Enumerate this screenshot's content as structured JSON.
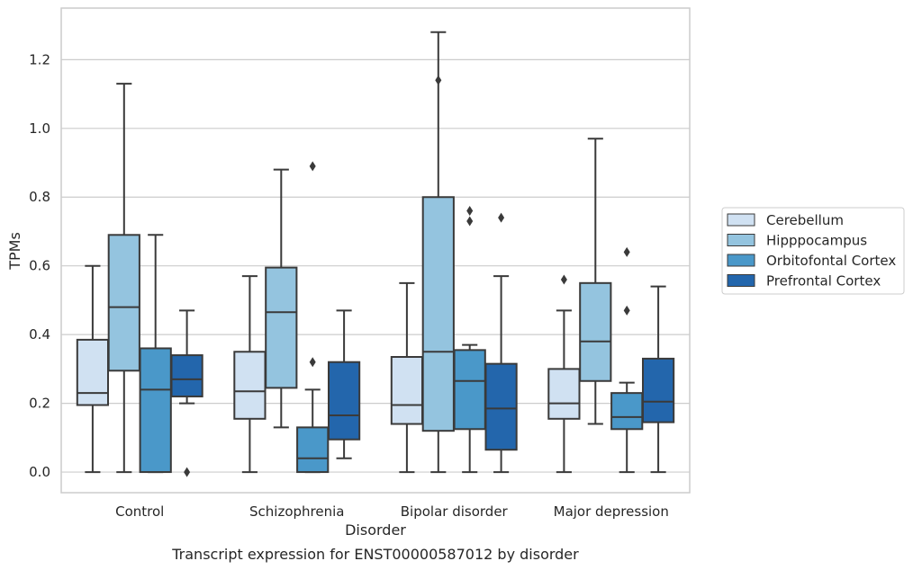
{
  "chart_data": {
    "type": "box",
    "title": "",
    "caption": "Transcript expression for ENST00000587012 by disorder",
    "xlabel": "Disorder",
    "ylabel": "TPMs",
    "ylim": [
      -0.06,
      1.35
    ],
    "yticks": [
      "0.0",
      "0.2",
      "0.4",
      "0.6",
      "0.8",
      "1.0",
      "1.2"
    ],
    "grid": true,
    "legend_position": "right",
    "categories": [
      "Control",
      "Schizophrenia",
      "Bipolar disorder",
      "Major depression"
    ],
    "series": [
      {
        "name": "Cerebellum",
        "color": "#d0e1f2",
        "boxes": [
          {
            "whislo": 0.0,
            "q1": 0.195,
            "med": 0.23,
            "q3": 0.385,
            "whishi": 0.6,
            "fliers": []
          },
          {
            "whislo": 0.0,
            "q1": 0.155,
            "med": 0.235,
            "q3": 0.35,
            "whishi": 0.57,
            "fliers": []
          },
          {
            "whislo": 0.0,
            "q1": 0.14,
            "med": 0.195,
            "q3": 0.335,
            "whishi": 0.55,
            "fliers": []
          },
          {
            "whislo": 0.0,
            "q1": 0.155,
            "med": 0.2,
            "q3": 0.3,
            "whishi": 0.47,
            "fliers": [
              0.56
            ]
          }
        ]
      },
      {
        "name": "Hipppocampus",
        "color": "#94c4df",
        "boxes": [
          {
            "whislo": 0.0,
            "q1": 0.295,
            "med": 0.48,
            "q3": 0.69,
            "whishi": 1.13,
            "fliers": []
          },
          {
            "whislo": 0.13,
            "q1": 0.245,
            "med": 0.465,
            "q3": 0.595,
            "whishi": 0.88,
            "fliers": []
          },
          {
            "whislo": 0.0,
            "q1": 0.12,
            "med": 0.35,
            "q3": 0.8,
            "whishi": 1.28,
            "fliers": [
              1.14
            ]
          },
          {
            "whislo": 0.14,
            "q1": 0.265,
            "med": 0.38,
            "q3": 0.55,
            "whishi": 0.97,
            "fliers": []
          }
        ]
      },
      {
        "name": "Orbitofontal Cortex",
        "color": "#4a98c9",
        "boxes": [
          {
            "whislo": 0.0,
            "q1": 0.0,
            "med": 0.24,
            "q3": 0.36,
            "whishi": 0.69,
            "fliers": []
          },
          {
            "whislo": 0.0,
            "q1": 0.0,
            "med": 0.04,
            "q3": 0.13,
            "whishi": 0.24,
            "fliers": [
              0.32,
              0.89
            ]
          },
          {
            "whislo": 0.0,
            "q1": 0.125,
            "med": 0.265,
            "q3": 0.355,
            "whishi": 0.37,
            "fliers": [
              0.73,
              0.76
            ]
          },
          {
            "whislo": 0.0,
            "q1": 0.125,
            "med": 0.16,
            "q3": 0.23,
            "whishi": 0.26,
            "fliers": [
              0.47,
              0.64
            ]
          }
        ]
      },
      {
        "name": "Prefrontal Cortex",
        "color": "#2366ac",
        "boxes": [
          {
            "whislo": 0.2,
            "q1": 0.22,
            "med": 0.27,
            "q3": 0.34,
            "whishi": 0.47,
            "fliers": [
              0.0
            ]
          },
          {
            "whislo": 0.04,
            "q1": 0.095,
            "med": 0.165,
            "q3": 0.32,
            "whishi": 0.47,
            "fliers": []
          },
          {
            "whislo": 0.0,
            "q1": 0.065,
            "med": 0.185,
            "q3": 0.315,
            "whishi": 0.57,
            "fliers": [
              0.74
            ]
          },
          {
            "whislo": 0.0,
            "q1": 0.145,
            "med": 0.205,
            "q3": 0.33,
            "whishi": 0.54,
            "fliers": []
          }
        ]
      }
    ]
  }
}
